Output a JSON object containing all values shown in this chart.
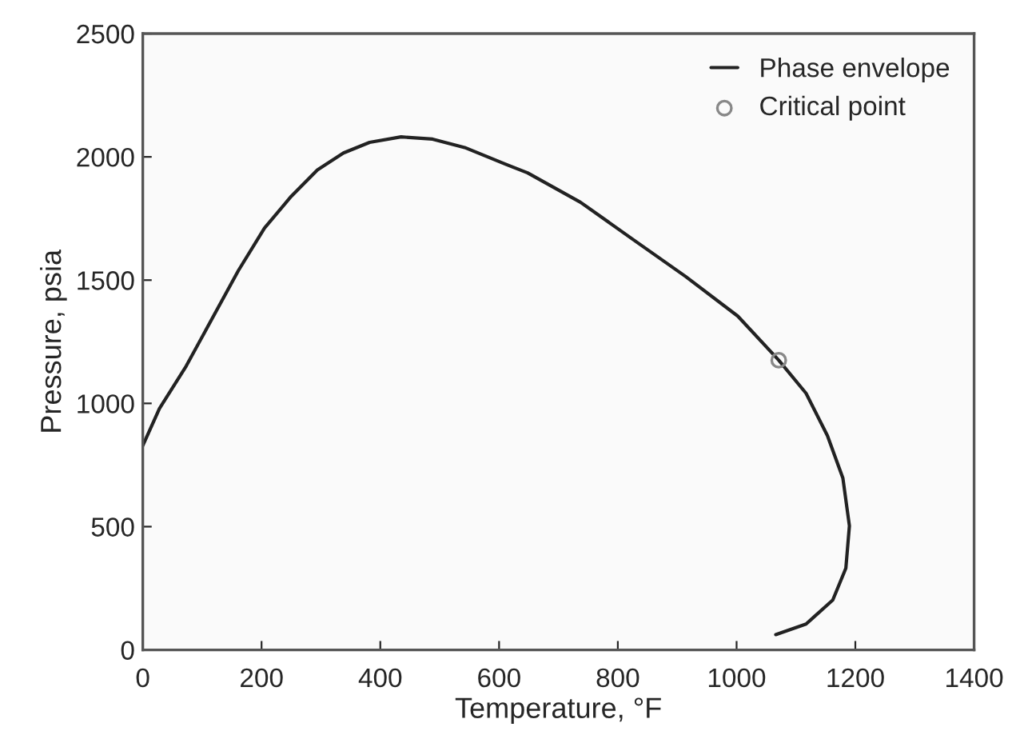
{
  "chart_data": {
    "type": "line",
    "xlabel": "Temperature, °F",
    "ylabel": "Pressure, psia",
    "xlim": [
      0,
      1400
    ],
    "ylim": [
      0,
      2500
    ],
    "xticks": [
      0,
      200,
      400,
      600,
      800,
      1000,
      1200,
      1400
    ],
    "yticks": [
      0,
      500,
      1000,
      1500,
      2000,
      2500
    ],
    "grid": false,
    "legend": "top right",
    "series": [
      {
        "name": "Phase envelope",
        "color": "#222222",
        "marker": "none",
        "x": [
          0,
          28,
          73,
          117,
          161,
          205,
          250,
          294,
          338,
          382,
          435,
          488,
          542,
          612,
          648,
          737,
          825,
          914,
          1002,
          1071,
          1117,
          1153,
          1179,
          1190,
          1184,
          1162,
          1117,
          1066
        ],
        "values": [
          829,
          979,
          1151,
          1345,
          1539,
          1711,
          1840,
          1947,
          2016,
          2059,
          2081,
          2072,
          2038,
          1969,
          1935,
          1816,
          1666,
          1515,
          1354,
          1175,
          1041,
          869,
          697,
          503,
          331,
          202,
          105,
          62
        ]
      },
      {
        "name": "Critical point",
        "type": "scatter",
        "color": "#888888",
        "marker": "circle",
        "x": [
          1071
        ],
        "values": [
          1175
        ]
      }
    ]
  }
}
